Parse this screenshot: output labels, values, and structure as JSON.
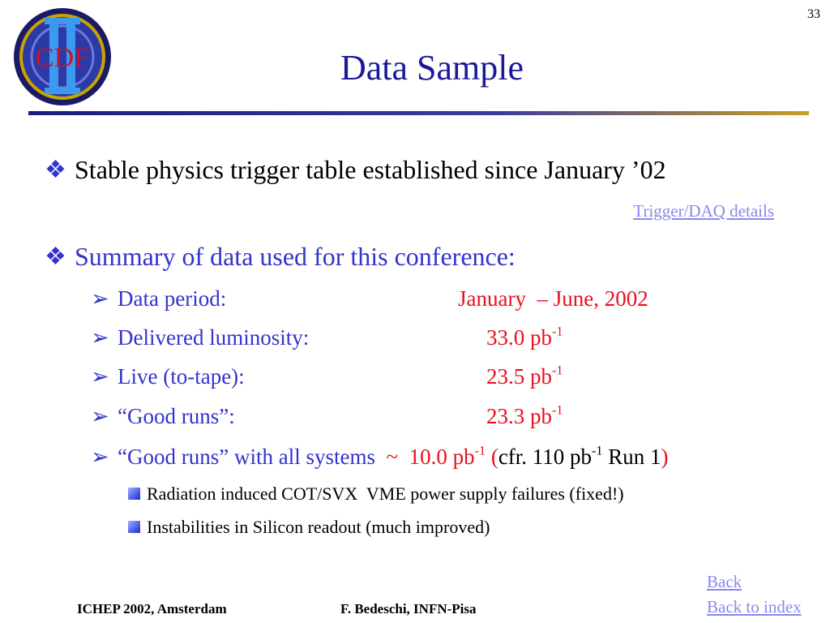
{
  "page_number": "33",
  "logo": {
    "text": "CDF"
  },
  "title": "Data Sample",
  "bullets": [
    {
      "text": "Stable physics trigger table established since January ’02"
    },
    {
      "text": "Summary of data used for this conference:"
    }
  ],
  "link": "Trigger/DAQ details",
  "items": [
    {
      "label": "Data period:",
      "value": "January  – June, 2002"
    },
    {
      "label": "Delivered luminosity:",
      "value": "33.0 pb",
      "exp": "-1"
    },
    {
      "label": "Live (to-tape):",
      "value": "23.5 pb",
      "exp": "-1"
    },
    {
      "label": "“Good runs”:",
      "value": "23.3 pb",
      "exp": "-1"
    }
  ],
  "last_item": {
    "label": "“Good runs” with all systems",
    "sep": "~",
    "value": "10.0 pb",
    "exp": "-1",
    "open": "(",
    "cfr": "cfr. 110 pb",
    "cfr_exp": "-1",
    "run": "Run 1",
    "close": ")"
  },
  "subitems": [
    "Radiation induced COT/SVX  VME power supply failures (fixed!)",
    "Instabilities in Silicon readout (much improved)"
  ],
  "footer": {
    "left": "ICHEP 2002, Amsterdam",
    "center": "F. Bedeschi, INFN-Pisa",
    "back": "Back",
    "back_index": "Back to index"
  }
}
